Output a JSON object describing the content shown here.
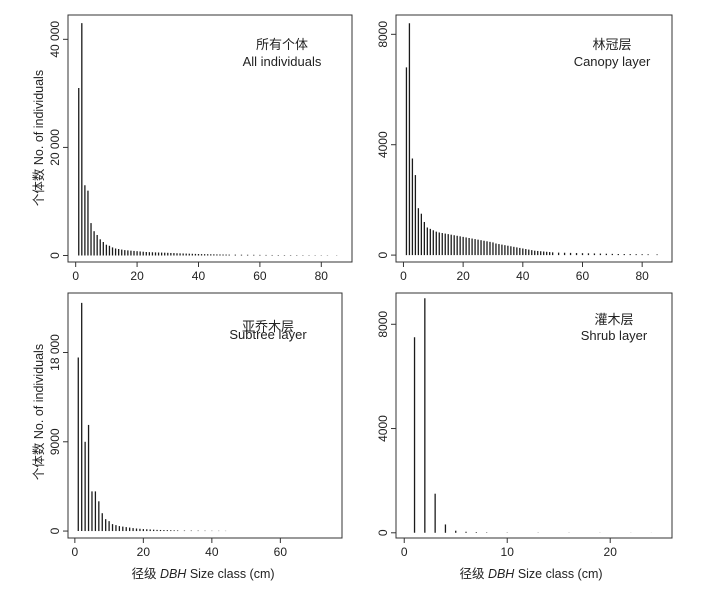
{
  "figure": {
    "ylabel": "个体数 No. of individuals",
    "xlabel_prefix": "径级 ",
    "xlabel_italic": "DBH",
    "xlabel_suffix": " Size class (cm)"
  },
  "chart_data": [
    {
      "type": "bar",
      "title_cn": "所有个体",
      "title_en": "All individuals",
      "xlim": [
        -2.5,
        90
      ],
      "ylim": [
        -1200,
        44500
      ],
      "xticks": [
        0,
        20,
        40,
        60,
        80
      ],
      "yticks": [
        0,
        20000,
        40000
      ],
      "ytick_labels": [
        "0",
        "20 000",
        "40 000"
      ],
      "x": [
        1,
        2,
        3,
        4,
        5,
        6,
        7,
        8,
        9,
        10,
        11,
        12,
        13,
        14,
        15,
        16,
        17,
        18,
        19,
        20,
        21,
        22,
        23,
        24,
        25,
        26,
        27,
        28,
        29,
        30,
        31,
        32,
        33,
        34,
        35,
        36,
        37,
        38,
        39,
        40,
        41,
        42,
        43,
        44,
        45,
        46,
        47,
        48,
        49,
        50,
        52,
        54,
        56,
        58,
        60,
        62,
        64,
        66,
        68,
        70,
        72,
        74,
        76,
        78,
        80,
        82,
        85
      ],
      "values": [
        31000,
        43000,
        13000,
        12000,
        6000,
        4500,
        3800,
        3000,
        2500,
        2000,
        1800,
        1500,
        1300,
        1200,
        1100,
        1000,
        950,
        900,
        850,
        800,
        750,
        700,
        650,
        620,
        600,
        580,
        560,
        540,
        520,
        500,
        470,
        450,
        420,
        400,
        380,
        360,
        340,
        320,
        300,
        280,
        260,
        250,
        240,
        230,
        220,
        210,
        200,
        190,
        180,
        170,
        160,
        150,
        140,
        130,
        120,
        110,
        100,
        95,
        90,
        85,
        80,
        75,
        70,
        65,
        60,
        55,
        50
      ]
    },
    {
      "type": "bar",
      "title_cn": "林冠层",
      "title_en": "Canopy layer",
      "xlim": [
        -2.5,
        90
      ],
      "ylim": [
        -250,
        8700
      ],
      "xticks": [
        0,
        20,
        40,
        60,
        80
      ],
      "yticks": [
        0,
        4000,
        8000
      ],
      "ytick_labels": [
        "0",
        "4000",
        "8000"
      ],
      "x": [
        1,
        2,
        3,
        4,
        5,
        6,
        7,
        8,
        9,
        10,
        11,
        12,
        13,
        14,
        15,
        16,
        17,
        18,
        19,
        20,
        21,
        22,
        23,
        24,
        25,
        26,
        27,
        28,
        29,
        30,
        31,
        32,
        33,
        34,
        35,
        36,
        37,
        38,
        39,
        40,
        41,
        42,
        43,
        44,
        45,
        46,
        47,
        48,
        49,
        50,
        52,
        54,
        56,
        58,
        60,
        62,
        64,
        66,
        68,
        70,
        72,
        74,
        76,
        78,
        80,
        82,
        85
      ],
      "values": [
        6800,
        8400,
        3500,
        2900,
        1700,
        1500,
        1200,
        1000,
        950,
        900,
        850,
        820,
        800,
        780,
        760,
        740,
        720,
        700,
        680,
        660,
        640,
        620,
        600,
        580,
        560,
        540,
        520,
        500,
        480,
        460,
        420,
        400,
        380,
        360,
        340,
        320,
        300,
        280,
        260,
        240,
        220,
        200,
        180,
        160,
        150,
        140,
        130,
        120,
        110,
        100,
        90,
        85,
        80,
        75,
        70,
        65,
        60,
        55,
        50,
        45,
        40,
        38,
        35,
        32,
        30,
        28,
        25
      ]
    },
    {
      "type": "bar",
      "title_cn": "亚乔木层",
      "title_en": "Subtree layer",
      "xlim": [
        -2,
        78
      ],
      "ylim": [
        -700,
        24000
      ],
      "xticks": [
        0,
        20,
        40,
        60
      ],
      "yticks": [
        0,
        9000,
        18000
      ],
      "ytick_labels": [
        "0",
        "9000",
        "18 000"
      ],
      "x": [
        1,
        2,
        3,
        4,
        5,
        6,
        7,
        8,
        9,
        10,
        11,
        12,
        13,
        14,
        15,
        16,
        17,
        18,
        19,
        20,
        21,
        22,
        23,
        24,
        25,
        26,
        27,
        28,
        29,
        30,
        32,
        34,
        36,
        38,
        40,
        42,
        44
      ],
      "values": [
        17500,
        23000,
        9000,
        10700,
        4000,
        4000,
        3000,
        1800,
        1200,
        1000,
        700,
        600,
        500,
        450,
        400,
        350,
        300,
        260,
        230,
        200,
        180,
        160,
        140,
        120,
        110,
        100,
        90,
        80,
        70,
        60,
        50,
        45,
        40,
        35,
        30,
        25,
        20
      ]
    },
    {
      "type": "bar",
      "title_cn": "灌木层",
      "title_en": "Shrub layer",
      "xlim": [
        -0.8,
        26
      ],
      "ylim": [
        -200,
        9200
      ],
      "xticks": [
        0,
        10,
        20
      ],
      "yticks": [
        0,
        4000,
        8000
      ],
      "ytick_labels": [
        "0",
        "4000",
        "8000"
      ],
      "x": [
        1,
        2,
        3,
        4,
        5,
        6,
        7,
        8,
        10,
        13,
        16,
        19,
        22,
        24
      ],
      "values": [
        7500,
        9000,
        1500,
        320,
        80,
        40,
        25,
        15,
        10,
        8,
        6,
        5,
        4,
        3
      ]
    }
  ]
}
